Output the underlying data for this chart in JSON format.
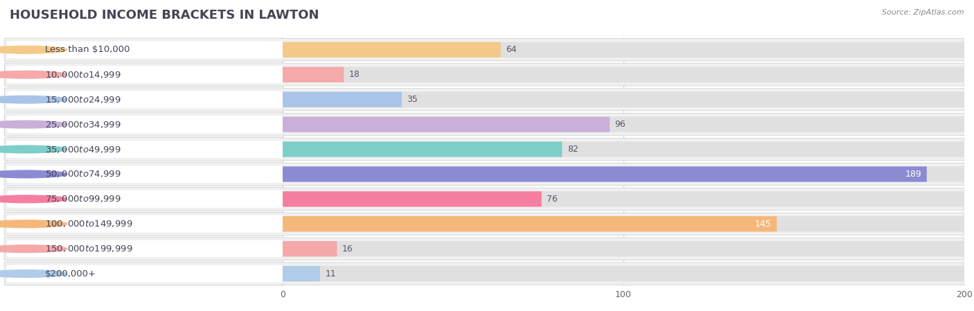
{
  "title": "HOUSEHOLD INCOME BRACKETS IN LAWTON",
  "source": "Source: ZipAtlas.com",
  "categories": [
    "Less than $10,000",
    "$10,000 to $14,999",
    "$15,000 to $24,999",
    "$25,000 to $34,999",
    "$35,000 to $49,999",
    "$50,000 to $74,999",
    "$75,000 to $99,999",
    "$100,000 to $149,999",
    "$150,000 to $199,999",
    "$200,000+"
  ],
  "values": [
    64,
    18,
    35,
    96,
    82,
    189,
    76,
    145,
    16,
    11
  ],
  "bar_colors": [
    "#f5c98a",
    "#f5a9a9",
    "#a9c4e8",
    "#c9b0d8",
    "#7ececa",
    "#8b8bd4",
    "#f57fa0",
    "#f5b87a",
    "#f5a9a9",
    "#b0cce8"
  ],
  "xlim": [
    0,
    200
  ],
  "xticks": [
    0,
    100,
    200
  ],
  "background_color": "#f0f0f0",
  "row_bg_color": "#f0f0f0",
  "bar_bg_color": "#e0e0e0",
  "white_bg": "#ffffff",
  "title_fontsize": 13,
  "label_fontsize": 9.5,
  "value_fontsize": 9,
  "white_value_threshold": 145
}
